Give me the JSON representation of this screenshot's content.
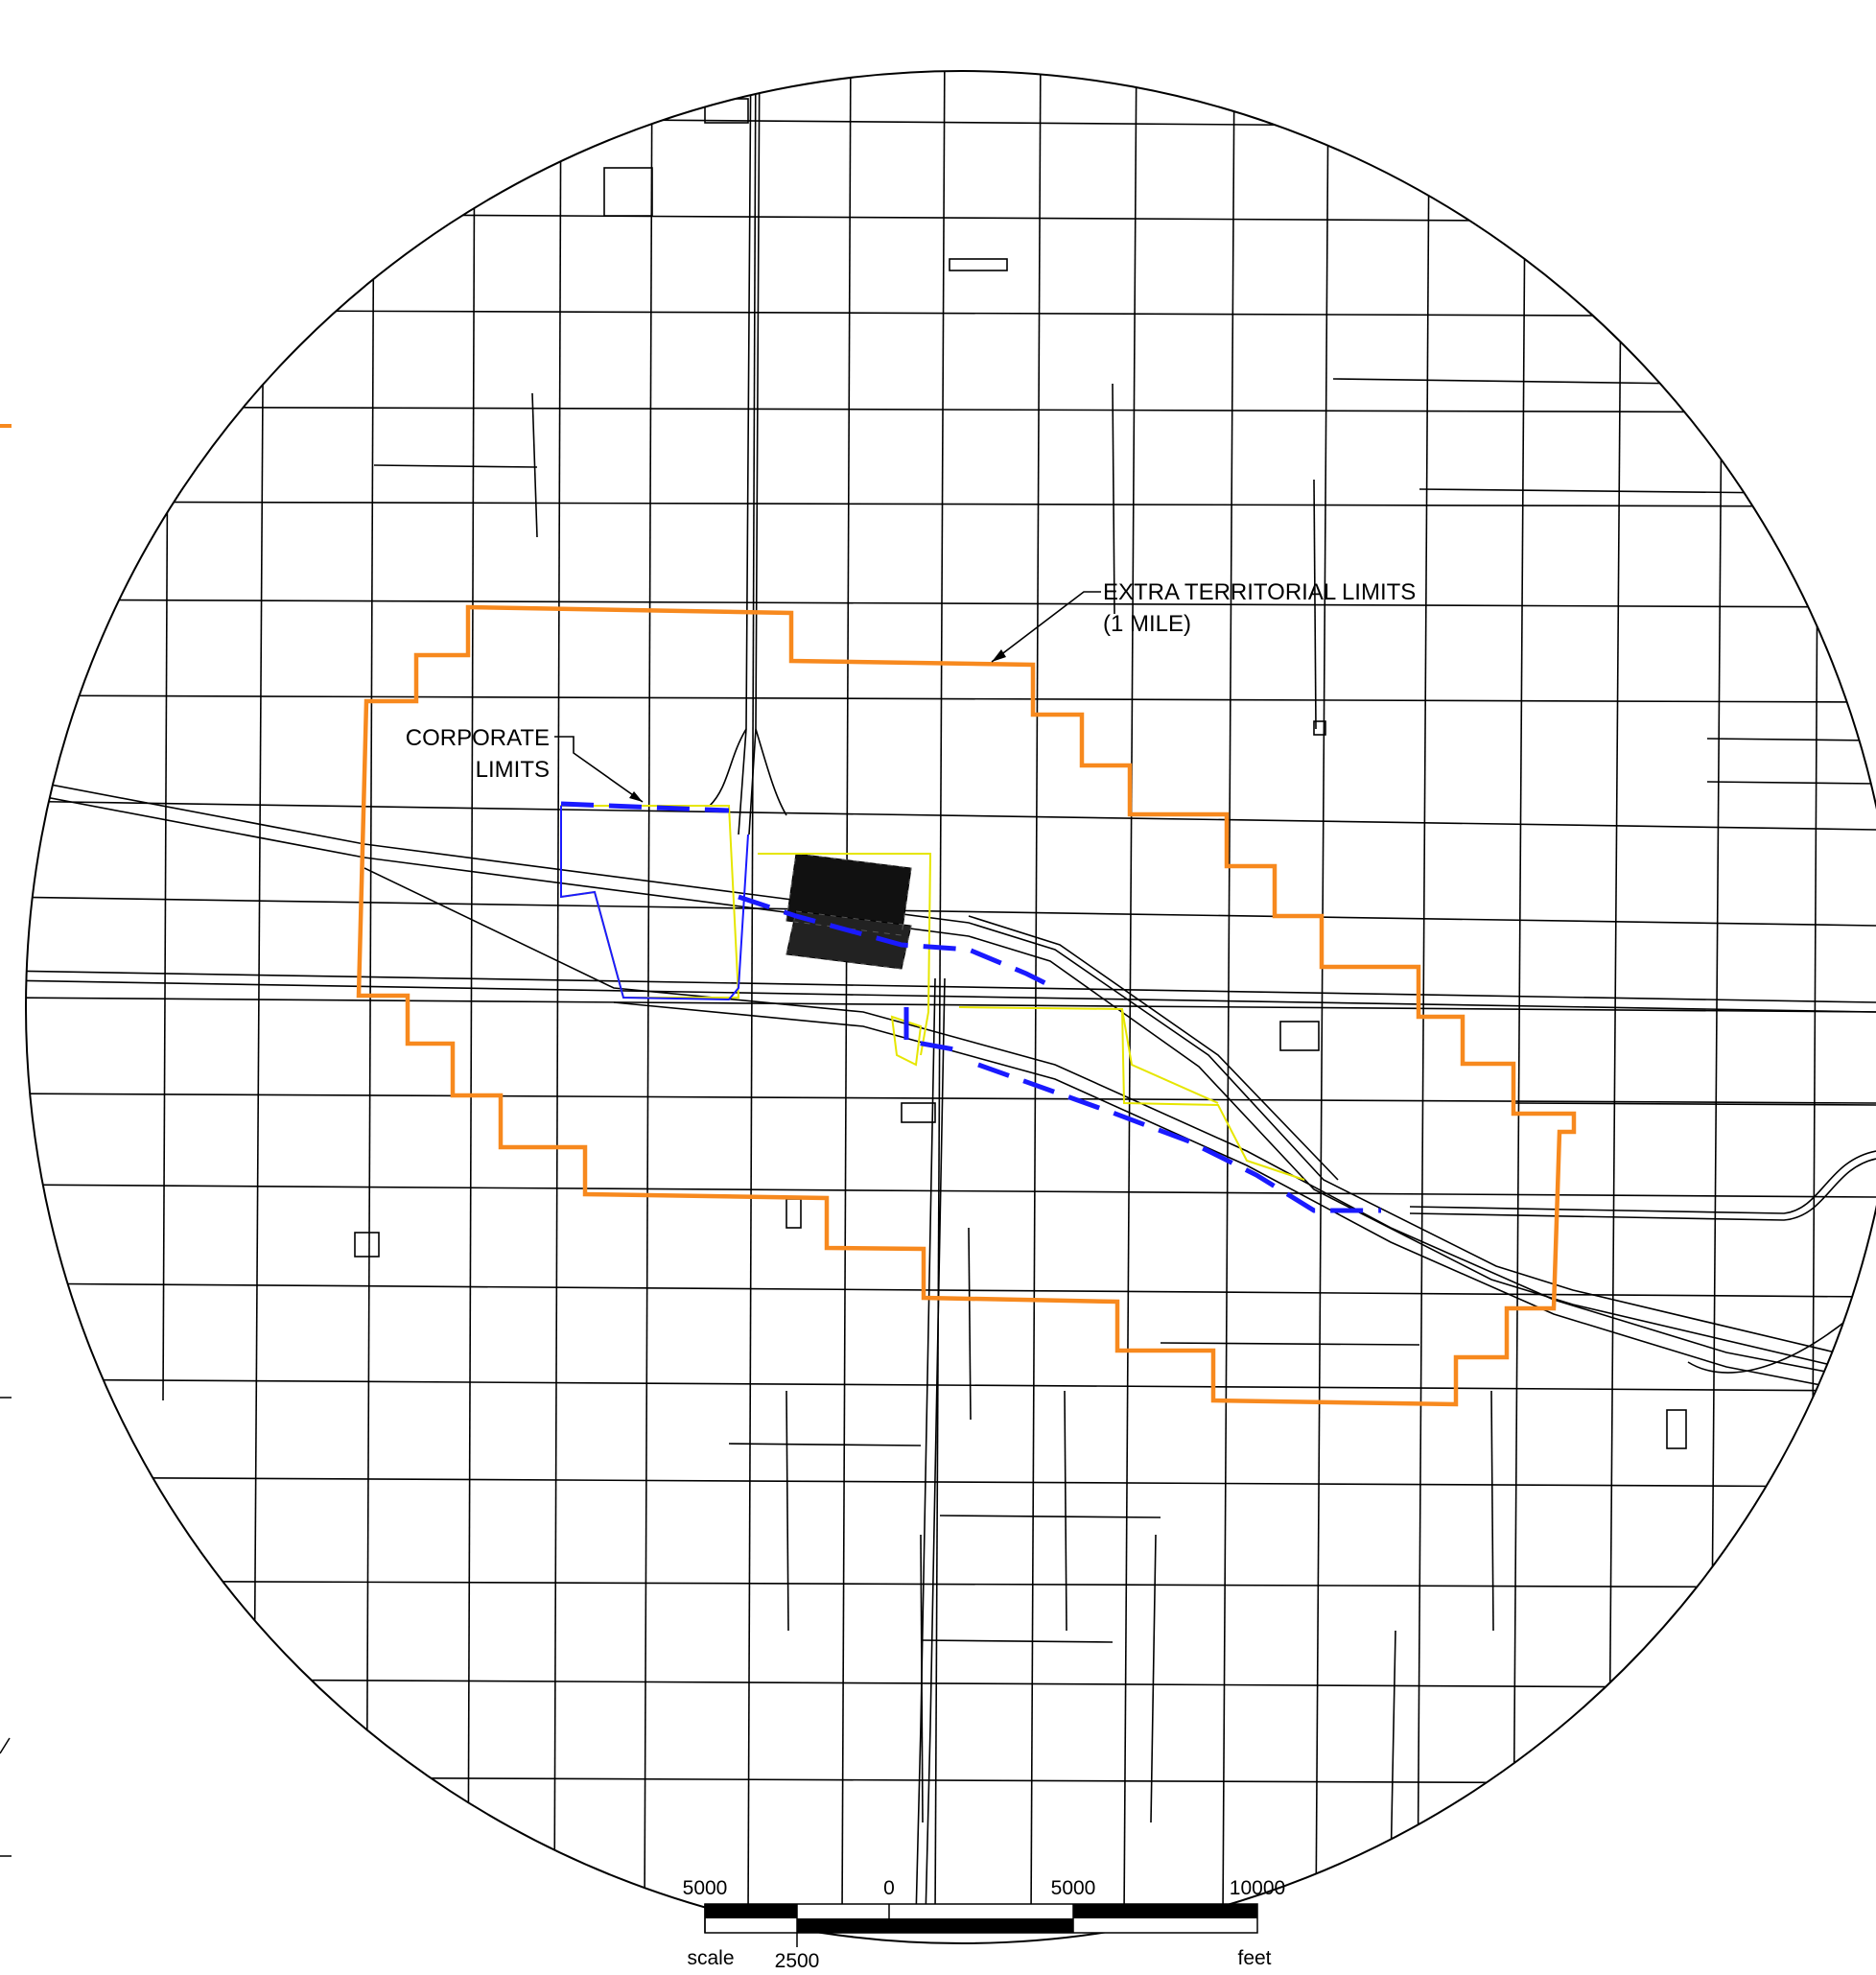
{
  "map": {
    "colors": {
      "extra_territorial_boundary": "#f7891e",
      "corporate_boundary": "#1a1aff",
      "parcel_lines": "#e6e600",
      "roads": "#000000",
      "background": "#ffffff"
    },
    "labels": {
      "extra_territorial_line1": "EXTRA TERRITORIAL LIMITS",
      "extra_territorial_line2": "(1 MILE)",
      "corporate_line1": "CORPORATE",
      "corporate_line2": "LIMITS"
    },
    "scale_bar": {
      "ticks": [
        "5000",
        "0",
        "5000",
        "10000"
      ],
      "left_word": "scale",
      "sub_tick": "2500",
      "unit": "feet"
    }
  }
}
